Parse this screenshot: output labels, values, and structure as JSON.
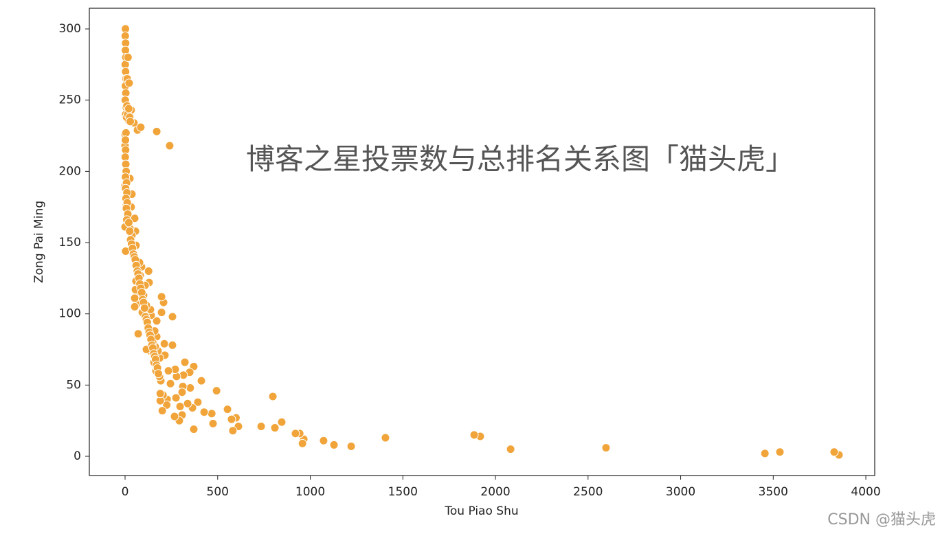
{
  "chart_data": {
    "type": "scatter",
    "x_label": "Tou Piao Shu",
    "y_label": "Zong Pai Ming",
    "annotation": "博客之星投票数与总排名关系图「猫头虎」",
    "watermark": "CSDN @猫头虎",
    "color": "#f0a43a",
    "xlim": [
      -193,
      4048
    ],
    "ylim": [
      -13.5,
      314.5
    ],
    "xticks": [
      0,
      500,
      1000,
      1500,
      2000,
      2500,
      3000,
      3500,
      4000
    ],
    "yticks": [
      0,
      50,
      100,
      150,
      200,
      250,
      300
    ],
    "x": [
      3855,
      3829,
      3536,
      3455,
      2597,
      2082,
      1918,
      1885,
      1406,
      1221,
      1128,
      1072,
      965,
      958,
      943,
      920,
      846,
      809,
      798,
      735,
      612,
      599,
      582,
      575,
      553,
      494,
      475,
      468,
      427,
      412,
      393,
      371,
      371,
      364,
      352,
      349,
      338,
      323,
      315,
      312,
      308,
      308,
      297,
      293,
      275,
      278,
      271,
      267,
      256,
      256,
      245,
      234,
      227,
      225,
      215,
      212,
      208,
      205,
      201,
      197,
      197,
      193,
      190,
      187,
      186,
      190,
      178,
      171,
      171,
      167,
      163,
      160,
      156,
      149,
      141,
      137,
      134,
      130,
      127,
      122,
      115,
      115,
      108,
      100,
      93,
      89,
      82,
      78,
      71,
      67,
      63,
      59,
      56,
      52,
      52,
      59,
      56,
      52,
      37,
      33,
      33,
      37,
      26,
      26,
      15,
      3,
      0,
      7,
      0,
      3,
      0,
      0,
      18,
      33,
      48,
      67,
      85,
      171,
      241,
      15,
      7,
      0,
      2,
      1,
      3,
      2,
      4,
      1,
      3,
      5,
      2,
      4,
      1,
      6,
      3,
      8,
      10,
      14,
      20,
      25,
      28,
      12,
      16,
      22,
      5,
      2,
      3,
      1,
      4,
      6,
      2,
      8,
      3,
      10,
      5,
      12,
      7,
      15,
      9,
      20,
      25,
      30,
      35,
      40,
      45,
      50,
      55,
      60,
      66,
      70,
      75,
      80,
      85,
      90,
      95,
      100,
      105,
      110,
      115,
      120,
      125,
      130,
      135,
      140,
      145,
      150,
      155,
      160,
      165,
      170,
      175,
      180
    ],
    "y": [
      1,
      3,
      3,
      2,
      6,
      5,
      14,
      15,
      13,
      7,
      8,
      11,
      12,
      9,
      16,
      16,
      24,
      20,
      42,
      21,
      21,
      27,
      18,
      26,
      33,
      46,
      23,
      30,
      31,
      53,
      38,
      63,
      19,
      34,
      48,
      59,
      37,
      66,
      57,
      49,
      45,
      29,
      35,
      25,
      41,
      56,
      61,
      28,
      98,
      78,
      51,
      60,
      40,
      36,
      71,
      79,
      108,
      43,
      32,
      112,
      101,
      53,
      39,
      69,
      56,
      44,
      74,
      84,
      95,
      60,
      77,
      88,
      66,
      80,
      99,
      103,
      74,
      122,
      130,
      92,
      106,
      75,
      120,
      113,
      101,
      133,
      127,
      136,
      86,
      112,
      107,
      123,
      117,
      111,
      105,
      148,
      158,
      167,
      155,
      144,
      175,
      184,
      195,
      160,
      171,
      144,
      161,
      176,
      190,
      205,
      218,
      226,
      236,
      243,
      234,
      229,
      231,
      228,
      218,
      262,
      281,
      300,
      300,
      295,
      290,
      285,
      280,
      275,
      270,
      265,
      260,
      255,
      250,
      245,
      240,
      238,
      246,
      240,
      244,
      238,
      235,
      265,
      280,
      262,
      227,
      222,
      215,
      210,
      205,
      200,
      196,
      192,
      188,
      185,
      181,
      178,
      174,
      170,
      166,
      164,
      158,
      152,
      149,
      146,
      142,
      140,
      138,
      134,
      130,
      128,
      125,
      121,
      118,
      115,
      110,
      108,
      104,
      98,
      96,
      94,
      90,
      87,
      85,
      82,
      78,
      76,
      72,
      70,
      68,
      64,
      62,
      58
    ]
  }
}
